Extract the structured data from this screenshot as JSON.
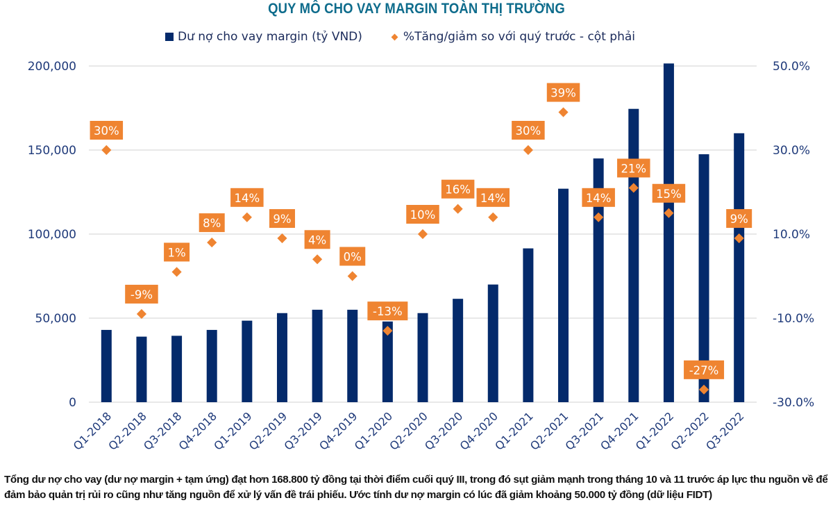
{
  "title": "QUY MÔ CHO VAY MARGIN TOÀN THỊ TRƯỜNG",
  "legend": {
    "bar_label": "Dư nợ cho vay margin (tỷ VND)",
    "marker_label": "%Tăng/giảm so với quý trước - cột phải"
  },
  "colors": {
    "bar": "#042a6b",
    "marker": "#ef8431",
    "label_bg": "#ef8431",
    "axis_text": "#1f3a7a",
    "grid": "#d9d9d9",
    "title": "#0e6c8c"
  },
  "chart_data": {
    "type": "bar",
    "title": "QUY MÔ CHO VAY MARGIN TOÀN THỊ TRƯỜNG",
    "xlabel": "",
    "ylabel": "",
    "categories": [
      "Q1-2018",
      "Q2-2018",
      "Q3-2018",
      "Q4-2018",
      "Q1-2019",
      "Q2-2019",
      "Q3-2019",
      "Q4-2019",
      "Q1-2020",
      "Q2-2020",
      "Q3-2020",
      "Q4-2020",
      "Q1-2021",
      "Q2-2021",
      "Q3-2021",
      "Q4-2021",
      "Q1-2022",
      "Q2-2022",
      "Q3-2022"
    ],
    "series": [
      {
        "name": "Dư nợ cho vay margin (tỷ VND)",
        "type": "bar",
        "axis": "left",
        "values": [
          43000,
          39000,
          39500,
          43000,
          48500,
          53000,
          55000,
          55000,
          48000,
          53000,
          61500,
          70000,
          91500,
          127000,
          145000,
          174500,
          201500,
          147500,
          160000
        ]
      },
      {
        "name": "%Tăng/giảm so với quý trước - cột phải",
        "type": "scatter",
        "axis": "right",
        "values": [
          30,
          -9,
          1,
          8,
          14,
          9,
          4,
          0,
          -13,
          10,
          16,
          14,
          30,
          39,
          14,
          21,
          15,
          -27,
          9
        ],
        "labels": [
          "30%",
          "-9%",
          "1%",
          "8%",
          "14%",
          "9%",
          "4%",
          "0%",
          "-13%",
          "10%",
          "16%",
          "14%",
          "30%",
          "39%",
          "14%",
          "21%",
          "15%",
          "-27%",
          "9%"
        ]
      }
    ],
    "y_left": {
      "min": 0,
      "max": 200000,
      "ticks": [
        0,
        50000,
        100000,
        150000,
        200000
      ],
      "tick_labels": [
        "0",
        "50,000",
        "100,000",
        "150,000",
        "200,000"
      ]
    },
    "y_right": {
      "min": -30,
      "max": 50,
      "ticks": [
        -30,
        -10,
        10,
        30,
        50
      ],
      "tick_labels": [
        "-30.0%",
        "-10.0%",
        "10.0%",
        "30.0%",
        "50.0%"
      ]
    },
    "grid": true,
    "legend_position": "top"
  },
  "caption": "Tổng dư nợ cho vay (dư nợ margin + tạm ứng) đạt hơn 168.800 tỷ đồng tại thời điểm cuối quý III, trong đó sụt giảm mạnh trong tháng 10 và 11 trước áp lực thu nguồn về để đảm bảo quản trị rủi ro cũng như tăng nguồn để xử lý vấn đề trái phiếu. Ước tính dư nợ margin có lúc đã giảm khoảng 50.000 tỷ đồng (dữ liệu FIDT)"
}
